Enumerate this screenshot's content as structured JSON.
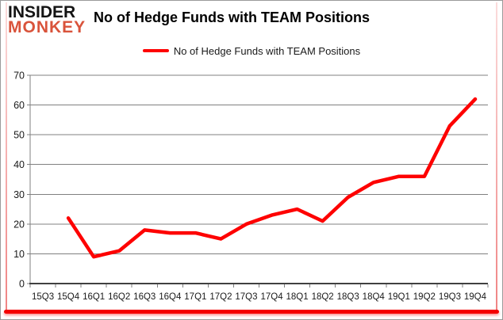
{
  "logo": {
    "line1": "INSIDER",
    "line2": "MONKEY"
  },
  "header": {
    "title": "No of Hedge Funds with TEAM Positions"
  },
  "legend": {
    "label": "No of Hedge Funds with TEAM Positions",
    "swatch_color": "#fe0000"
  },
  "chart_data": {
    "type": "line",
    "title": "No of Hedge Funds with TEAM Positions",
    "categories": [
      "15Q3",
      "15Q4",
      "16Q1",
      "16Q2",
      "16Q3",
      "16Q4",
      "17Q1",
      "17Q2",
      "17Q3",
      "17Q4",
      "18Q1",
      "18Q2",
      "18Q3",
      "18Q4",
      "19Q1",
      "19Q2",
      "19Q3",
      "19Q4"
    ],
    "series": [
      {
        "name": "No of Hedge Funds with TEAM Positions",
        "color": "#fe0000",
        "values": [
          null,
          22,
          9,
          11,
          18,
          17,
          17,
          15,
          20,
          23,
          25,
          21,
          29,
          34,
          36,
          36,
          53,
          62
        ]
      }
    ],
    "xlabel": "",
    "ylabel": "",
    "ylim": [
      0,
      70
    ],
    "yticks": [
      0,
      10,
      20,
      30,
      40,
      50,
      60,
      70
    ],
    "grid": true,
    "legend_position": "top-center"
  },
  "colors": {
    "line": "#fe0000",
    "gridline": "#808080",
    "axis": "#404040",
    "tick_label": "#1a1a1a",
    "frame_pink": "#f08484",
    "bottom_bar": "#f40000",
    "outer_border": "#9a9a9a"
  }
}
